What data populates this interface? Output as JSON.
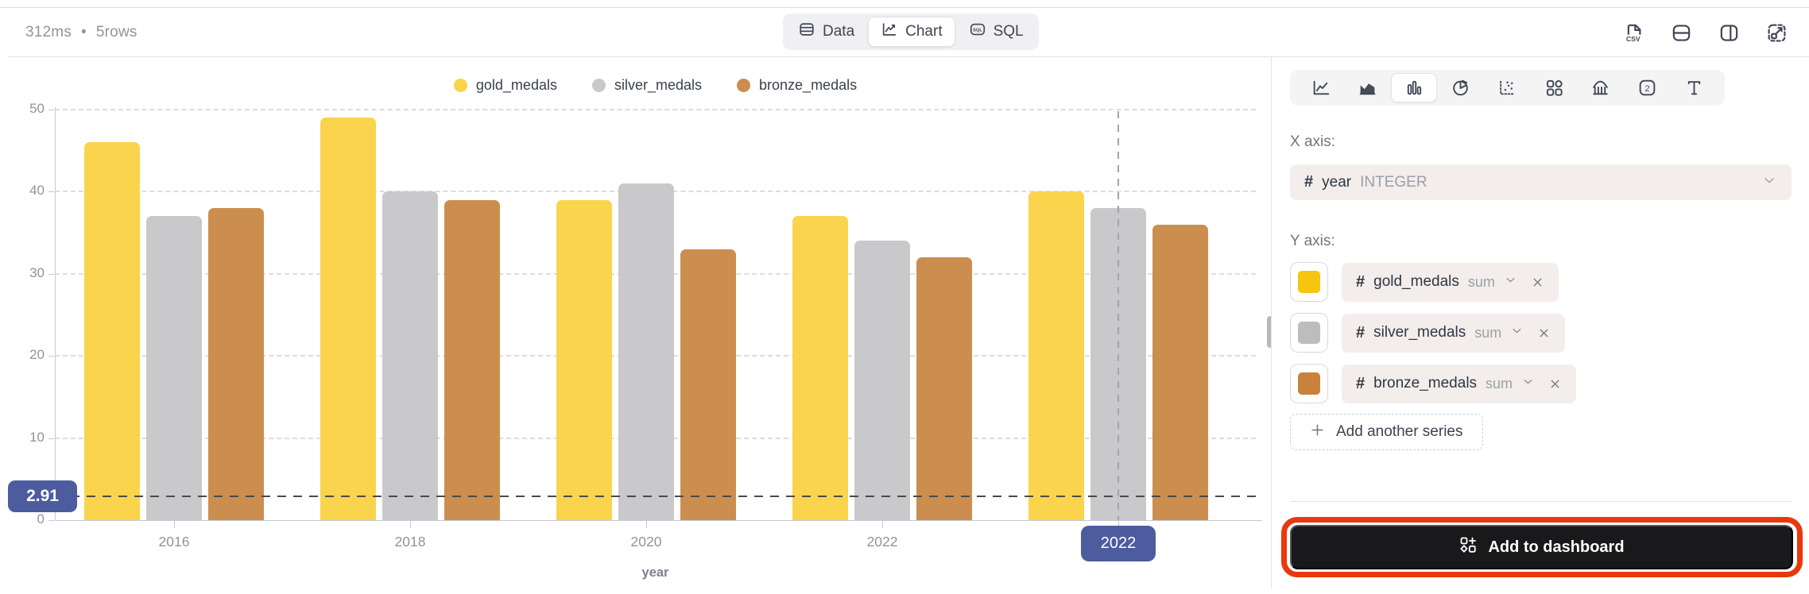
{
  "toolbar": {
    "status_time": "312ms",
    "status_bullet": "•",
    "status_rows": "5rows",
    "tabs": [
      {
        "label": "Data",
        "icon": "table-icon",
        "active": false
      },
      {
        "label": "Chart",
        "icon": "line-chart-icon",
        "active": true
      },
      {
        "label": "SQL",
        "icon": "sql-badge-icon",
        "active": false
      }
    ],
    "actions": [
      "export-csv-icon",
      "split-horizontal-icon",
      "split-vertical-icon",
      "expand-icon"
    ]
  },
  "chart_data": {
    "type": "bar",
    "title": "",
    "categories": [
      "2016",
      "2018",
      "2020",
      "2022",
      "2022"
    ],
    "series": [
      {
        "name": "gold_medals",
        "color": "#FBD44D",
        "values": [
          46,
          49,
          39,
          37,
          40
        ]
      },
      {
        "name": "silver_medals",
        "color": "#C9C9CB",
        "values": [
          37,
          40,
          41,
          34,
          38
        ]
      },
      {
        "name": "bronze_medals",
        "color": "#CC8E4F",
        "values": [
          38,
          39,
          33,
          32,
          36
        ]
      }
    ],
    "xlabel": "year",
    "ylabel": "",
    "ylim": [
      0,
      50
    ],
    "yticks": [
      0,
      10,
      20,
      30,
      40,
      50
    ],
    "grid": true,
    "legend_position": "top",
    "crosshair": {
      "y_value": 2.91,
      "y_badge_label": "2.91",
      "x_group_index": 4,
      "x_badge_label": "2022",
      "badge_color": "#4D5C9E"
    }
  },
  "panel": {
    "chart_type_icons": [
      "line-chart-icon",
      "area-chart-icon",
      "bar-chart-icon",
      "pie-chart-icon",
      "scatter-chart-icon",
      "grid-layout-icon",
      "histogram-icon",
      "number-card-icon",
      "text-icon"
    ],
    "active_chart_type_index": 2,
    "x_axis_label": "X axis:",
    "x_field": {
      "name": "year",
      "type": "INTEGER"
    },
    "y_axis_label": "Y axis:",
    "y_series": [
      {
        "swatch_color": "#F6C50F",
        "name": "gold_medals",
        "agg": "sum"
      },
      {
        "swatch_color": "#BDBDBF",
        "name": "silver_medals",
        "agg": "sum"
      },
      {
        "swatch_color": "#C8823B",
        "name": "bronze_medals",
        "agg": "sum"
      }
    ],
    "add_series_label": "Add another series",
    "add_to_dashboard_label": "Add to dashboard",
    "annotation_color": "#E8380D"
  }
}
